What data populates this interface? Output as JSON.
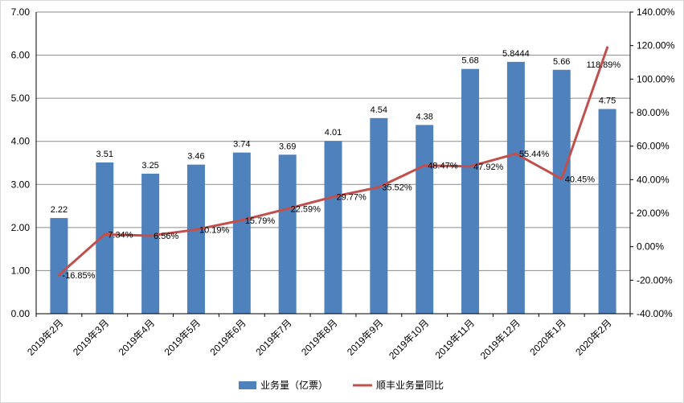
{
  "chart_data": {
    "type": "bar+line",
    "categories": [
      "2019年2月",
      "2019年3月",
      "2019年4月",
      "2019年5月",
      "2019年6月",
      "2019年7月",
      "2019年8月",
      "2019年9月",
      "2019年10月",
      "2019年11月",
      "2019年12月",
      "2020年1月",
      "2020年2月"
    ],
    "series": [
      {
        "name": "业务量（亿票）",
        "type": "bar",
        "axis": "left",
        "color": "#4f81bd",
        "values": [
          2.22,
          3.51,
          3.25,
          3.46,
          3.74,
          3.69,
          4.01,
          4.54,
          4.38,
          5.68,
          5.8444,
          5.66,
          4.75
        ],
        "labels": [
          "2.22",
          "3.51",
          "3.25",
          "3.46",
          "3.74",
          "3.69",
          "4.01",
          "4.54",
          "4.38",
          "5.68",
          "5.8444",
          "5.66",
          "4.75"
        ]
      },
      {
        "name": "顺丰业务量同比",
        "type": "line",
        "axis": "right",
        "color": "#c0504d",
        "values": [
          -16.85,
          7.34,
          6.56,
          10.19,
          15.79,
          22.59,
          29.77,
          35.52,
          48.47,
          47.92,
          55.44,
          40.45,
          118.89
        ],
        "labels": [
          "-16.85%",
          "7.34%",
          "6.56%",
          "10.19%",
          "15.79%",
          "22.59%",
          "29.77%",
          "35.52%",
          "48.47%",
          "47.92%",
          "55.44%",
          "40.45%",
          "118.89%"
        ]
      }
    ],
    "y_left": {
      "min": 0,
      "max": 7,
      "step": 1,
      "ticks": [
        "0.00",
        "1.00",
        "2.00",
        "3.00",
        "4.00",
        "5.00",
        "6.00",
        "7.00"
      ]
    },
    "y_right": {
      "min": -40,
      "max": 140,
      "step": 20,
      "ticks": [
        "-40.00%",
        "-20.00%",
        "0.00%",
        "20.00%",
        "40.00%",
        "60.00%",
        "80.00%",
        "100.00%",
        "120.00%",
        "140.00%"
      ]
    },
    "grid": true,
    "gridline_color": "#8c8c8c",
    "legend_position": "bottom"
  }
}
